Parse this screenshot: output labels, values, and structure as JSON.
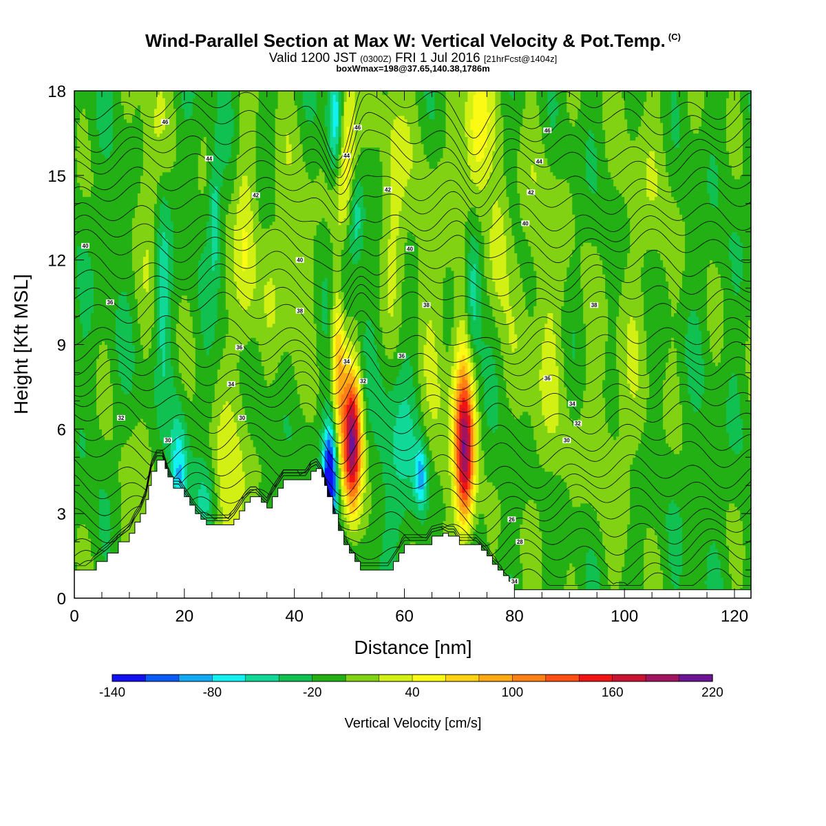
{
  "title": {
    "main": "Wind-Parallel Section at Max W: Vertical Velocity & Pot.Temp.",
    "copyright": "(C)",
    "valid_prefix": "Valid 1200 JST",
    "valid_utc": "(0300Z)",
    "valid_date": "FRI 1 Jul 2016",
    "forecast": "[21hrFcst@1404z]",
    "box_info": "boxWmax=198@37.65,140.38,1786m"
  },
  "chart_data": {
    "type": "heatmap",
    "xlabel": "Distance [nm]",
    "ylabel": "Height [Kft MSL]",
    "xlim": [
      0,
      123
    ],
    "ylim": [
      0,
      18
    ],
    "x_ticks": [
      0,
      20,
      40,
      60,
      80,
      100,
      120
    ],
    "y_ticks": [
      0,
      3,
      6,
      9,
      12,
      15,
      18
    ],
    "colorbar": {
      "title": "Vertical Velocity [cm/s]",
      "min": -140,
      "max": 220,
      "step": 20,
      "tick_labels": [
        "-140",
        "-80",
        "-20",
        "40",
        "100",
        "160",
        "220"
      ],
      "tick_values": [
        -140,
        -80,
        -20,
        40,
        100,
        160,
        220
      ],
      "colors": [
        "#1010f0",
        "#0a5af5",
        "#13aaf5",
        "#13f0f0",
        "#10d896",
        "#10c050",
        "#22b014",
        "#82d214",
        "#d2f014",
        "#fafa14",
        "#ffd214",
        "#ffaa14",
        "#ff8014",
        "#ff5014",
        "#f01414",
        "#c81432",
        "#a01460",
        "#6e1496"
      ]
    },
    "background_w": -10,
    "updrafts": [
      {
        "x": 50.5,
        "y": 5.5,
        "amp": 205,
        "sx": 1.2,
        "sy": 1.8
      },
      {
        "x": 48.0,
        "y": 9.5,
        "amp": 120,
        "sx": 1.0,
        "sy": 2.6
      },
      {
        "x": 49.5,
        "y": 15.5,
        "amp": 90,
        "sx": 1.5,
        "sy": 2.5
      },
      {
        "x": 71.0,
        "y": 5.0,
        "amp": 170,
        "sx": 1.2,
        "sy": 1.8
      },
      {
        "x": 70.5,
        "y": 7.5,
        "amp": 60,
        "sx": 1.5,
        "sy": 2.0
      },
      {
        "x": 73.0,
        "y": 16.5,
        "amp": 70,
        "sx": 1.8,
        "sy": 2.0
      },
      {
        "x": 77.0,
        "y": 12.5,
        "amp": 50,
        "sx": 1.4,
        "sy": 1.6
      },
      {
        "x": 27.5,
        "y": 3.5,
        "amp": 55,
        "sx": 2.5,
        "sy": 2.0
      },
      {
        "x": 31.0,
        "y": 12.0,
        "amp": 50,
        "sx": 1.5,
        "sy": 3.0
      },
      {
        "x": 14.0,
        "y": 15.0,
        "amp": 35,
        "sx": 2.0,
        "sy": 3.0
      },
      {
        "x": 11.0,
        "y": 3.5,
        "amp": 25,
        "sx": 2.0,
        "sy": 1.5
      },
      {
        "x": 58.0,
        "y": 14.5,
        "amp": 40,
        "sx": 1.5,
        "sy": 3.0
      },
      {
        "x": 39.0,
        "y": 12.0,
        "amp": 30,
        "sx": 3.0,
        "sy": 3.0
      },
      {
        "x": 64.0,
        "y": 8.0,
        "amp": 28,
        "sx": 4.0,
        "sy": 6.0
      },
      {
        "x": 85.0,
        "y": 10.0,
        "amp": 28,
        "sx": 3.5,
        "sy": 5.0
      },
      {
        "x": 98.0,
        "y": 6.0,
        "amp": 22,
        "sx": 4.5,
        "sy": 3.0
      },
      {
        "x": 104.0,
        "y": 14.5,
        "amp": 20,
        "sx": 4.0,
        "sy": 3.5
      }
    ],
    "downdrafts": [
      {
        "x": 46.5,
        "y": 4.3,
        "amp": -155,
        "sx": 0.9,
        "sy": 1.4
      },
      {
        "x": 48.5,
        "y": 11.5,
        "amp": -95,
        "sx": 1.2,
        "sy": 1.8
      },
      {
        "x": 47.5,
        "y": 17.0,
        "amp": -90,
        "sx": 1.0,
        "sy": 1.5
      },
      {
        "x": 51.0,
        "y": 13.5,
        "amp": -70,
        "sx": 1.0,
        "sy": 1.3
      },
      {
        "x": 63.0,
        "y": 4.3,
        "amp": -75,
        "sx": 0.8,
        "sy": 0.8
      },
      {
        "x": 72.5,
        "y": 10.8,
        "amp": -65,
        "sx": 1.0,
        "sy": 1.8
      },
      {
        "x": 19.0,
        "y": 4.3,
        "amp": -70,
        "sx": 1.0,
        "sy": 1.5
      },
      {
        "x": 24.0,
        "y": 3.3,
        "amp": -55,
        "sx": 1.5,
        "sy": 1.0
      },
      {
        "x": 25.5,
        "y": 13.5,
        "amp": -50,
        "sx": 0.8,
        "sy": 1.5
      },
      {
        "x": 16.0,
        "y": 11.5,
        "amp": -45,
        "sx": 1.0,
        "sy": 2.5
      },
      {
        "x": 60.0,
        "y": 5.5,
        "amp": -45,
        "sx": 3.0,
        "sy": 3.0
      }
    ],
    "theta_contours": [
      {
        "label": "34",
        "base": 0.5,
        "k": 1
      },
      {
        "label": "34",
        "base": 1.0,
        "k": 1
      },
      {
        "label": "",
        "base": 1.5,
        "k": 1
      },
      {
        "label": "",
        "base": 2.0,
        "k": 1
      },
      {
        "label": "",
        "base": 2.5,
        "k": 1
      },
      {
        "label": "26",
        "base": 3.0,
        "k": 1
      },
      {
        "label": "",
        "base": 3.5,
        "k": 1
      },
      {
        "label": "",
        "base": 4.0,
        "k": 1
      },
      {
        "label": "",
        "base": 4.5,
        "k": 1
      },
      {
        "label": "30",
        "base": 5.2,
        "k": 1
      },
      {
        "label": "",
        "base": 5.7,
        "k": 1
      },
      {
        "label": "32",
        "base": 6.4,
        "k": 1
      },
      {
        "label": "34",
        "base": 7.0,
        "k": 1
      },
      {
        "label": "",
        "base": 7.5,
        "k": 1
      },
      {
        "label": "",
        "base": 8.0,
        "k": 1
      },
      {
        "label": "",
        "base": 8.5,
        "k": 1
      },
      {
        "label": "",
        "base": 9.0,
        "k": 1
      },
      {
        "label": "",
        "base": 9.5,
        "k": 1
      },
      {
        "label": "36",
        "base": 10.3,
        "k": 1
      },
      {
        "label": "",
        "base": 10.8,
        "k": 1
      },
      {
        "label": "",
        "base": 11.3,
        "k": 1
      },
      {
        "label": "",
        "base": 11.8,
        "k": 1
      },
      {
        "label": "40",
        "base": 12.5,
        "k": 1
      },
      {
        "label": "",
        "base": 13.0,
        "k": 1
      },
      {
        "label": "",
        "base": 13.5,
        "k": 1
      },
      {
        "label": "42",
        "base": 14.2,
        "k": 1
      },
      {
        "label": "",
        "base": 14.7,
        "k": 1
      },
      {
        "label": "44",
        "base": 15.4,
        "k": 1
      },
      {
        "label": "",
        "base": 15.9,
        "k": 1
      },
      {
        "label": "",
        "base": 16.4,
        "k": 1
      },
      {
        "label": "46",
        "base": 17.0,
        "k": 1
      },
      {
        "label": "",
        "base": 17.5,
        "k": 1
      }
    ],
    "theta_labels": [
      {
        "text": "46",
        "x": 16.5,
        "y": 16.9
      },
      {
        "text": "44",
        "x": 24.5,
        "y": 15.6
      },
      {
        "text": "42",
        "x": 33.0,
        "y": 14.3
      },
      {
        "text": "40",
        "x": 41.0,
        "y": 12.0
      },
      {
        "text": "38",
        "x": 41.0,
        "y": 10.2
      },
      {
        "text": "36",
        "x": 30.0,
        "y": 8.9
      },
      {
        "text": "34",
        "x": 28.5,
        "y": 7.6
      },
      {
        "text": "30",
        "x": 30.5,
        "y": 6.4
      },
      {
        "text": "30",
        "x": 17.0,
        "y": 5.6
      },
      {
        "text": "32",
        "x": 8.5,
        "y": 6.4
      },
      {
        "text": "36",
        "x": 6.5,
        "y": 10.5
      },
      {
        "text": "40",
        "x": 2.0,
        "y": 12.5
      },
      {
        "text": "46",
        "x": 51.5,
        "y": 16.7
      },
      {
        "text": "44",
        "x": 49.5,
        "y": 15.7
      },
      {
        "text": "42",
        "x": 57.0,
        "y": 14.5
      },
      {
        "text": "40",
        "x": 61.0,
        "y": 12.4
      },
      {
        "text": "38",
        "x": 64.0,
        "y": 10.4
      },
      {
        "text": "36",
        "x": 59.5,
        "y": 8.6
      },
      {
        "text": "34",
        "x": 49.5,
        "y": 8.4
      },
      {
        "text": "32",
        "x": 52.5,
        "y": 7.7
      },
      {
        "text": "46",
        "x": 86.0,
        "y": 16.6
      },
      {
        "text": "44",
        "x": 84.5,
        "y": 15.5
      },
      {
        "text": "42",
        "x": 83.0,
        "y": 14.4
      },
      {
        "text": "40",
        "x": 82.0,
        "y": 13.3
      },
      {
        "text": "38",
        "x": 94.5,
        "y": 10.4
      },
      {
        "text": "36",
        "x": 86.0,
        "y": 7.8
      },
      {
        "text": "34",
        "x": 90.5,
        "y": 6.9
      },
      {
        "text": "32",
        "x": 91.5,
        "y": 6.2
      },
      {
        "text": "30",
        "x": 89.5,
        "y": 5.6
      },
      {
        "text": "26",
        "x": 79.5,
        "y": 2.8
      },
      {
        "text": "28",
        "x": 81.0,
        "y": 2.0
      },
      {
        "text": "34",
        "x": 80.0,
        "y": 0.6
      }
    ],
    "terrain": [
      [
        0,
        1.0
      ],
      [
        2,
        1.0
      ],
      [
        4,
        1.3
      ],
      [
        6,
        1.6
      ],
      [
        8,
        2.0
      ],
      [
        10,
        2.3
      ],
      [
        11,
        2.7
      ],
      [
        12,
        3.0
      ],
      [
        13,
        3.5
      ],
      [
        13.5,
        4.0
      ],
      [
        14,
        4.5
      ],
      [
        15,
        4.9
      ],
      [
        16,
        4.9
      ],
      [
        16.5,
        4.6
      ],
      [
        17,
        4.3
      ],
      [
        18,
        3.9
      ],
      [
        19,
        3.9
      ],
      [
        20,
        3.6
      ],
      [
        21,
        3.3
      ],
      [
        22,
        3.0
      ],
      [
        23,
        2.8
      ],
      [
        24,
        2.6
      ],
      [
        25,
        2.6
      ],
      [
        26,
        2.6
      ],
      [
        28,
        2.6
      ],
      [
        29,
        2.8
      ],
      [
        30,
        3.1
      ],
      [
        31,
        3.4
      ],
      [
        32,
        3.6
      ],
      [
        33,
        3.6
      ],
      [
        34,
        3.4
      ],
      [
        35,
        3.2
      ],
      [
        36,
        3.6
      ],
      [
        37,
        3.9
      ],
      [
        38,
        4.2
      ],
      [
        40,
        4.2
      ],
      [
        42,
        4.2
      ],
      [
        43,
        4.5
      ],
      [
        44,
        4.6
      ],
      [
        45,
        4.3
      ],
      [
        45.5,
        4.0
      ],
      [
        46,
        3.6
      ],
      [
        47,
        3.0
      ],
      [
        48,
        2.4
      ],
      [
        49,
        1.9
      ],
      [
        50,
        1.6
      ],
      [
        51,
        1.3
      ],
      [
        52,
        1.0
      ],
      [
        54,
        1.0
      ],
      [
        57,
        1.0
      ],
      [
        58,
        1.3
      ],
      [
        59,
        1.6
      ],
      [
        60,
        1.9
      ],
      [
        62,
        1.9
      ],
      [
        64,
        1.9
      ],
      [
        65,
        2.2
      ],
      [
        67,
        2.3
      ],
      [
        68,
        2.2
      ],
      [
        69,
        2.2
      ],
      [
        70,
        1.9
      ],
      [
        73,
        1.9
      ],
      [
        74,
        1.7
      ],
      [
        75,
        1.5
      ],
      [
        76,
        1.2
      ],
      [
        77,
        1.0
      ],
      [
        78,
        0.8
      ],
      [
        79,
        0.6
      ],
      [
        80,
        0.3
      ],
      [
        81,
        0.3
      ],
      [
        82,
        0.3
      ],
      [
        84,
        0.3
      ],
      [
        90,
        0.3
      ],
      [
        100,
        0.3
      ],
      [
        110,
        0.3
      ],
      [
        123,
        0.3
      ]
    ]
  }
}
